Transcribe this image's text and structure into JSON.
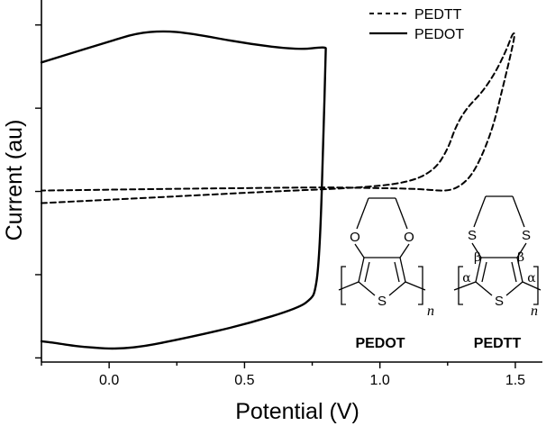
{
  "chart_data": {
    "type": "line",
    "title": "",
    "xlabel": "Potential (V)",
    "ylabel": "Current (au)",
    "xlim": [
      -0.25,
      1.6
    ],
    "ylim": [
      -2.05,
      2.3
    ],
    "x_ticks": [
      0.0,
      0.5,
      1.0,
      1.5
    ],
    "x_tick_labels": [
      "0.0",
      "0.5",
      "1.0",
      "1.5"
    ],
    "y_ticks": [
      -2,
      -1,
      0,
      1,
      2
    ],
    "y_tick_labels": [
      "",
      "",
      "",
      "",
      ""
    ],
    "grid": false,
    "legend_position": "top-right",
    "series": [
      {
        "name": "PEDTT",
        "style": "dashed",
        "color": "#000000",
        "x": [
          -0.25,
          0.0,
          0.3,
          0.6,
          0.9,
          1.1,
          1.2,
          1.25,
          1.28,
          1.32,
          1.38,
          1.43,
          1.47,
          1.49,
          1.5,
          1.48,
          1.45,
          1.42,
          1.38,
          1.34,
          1.3,
          1.25,
          1.15,
          1.0,
          0.8,
          0.5,
          0.2,
          -0.25
        ],
        "y": [
          -0.14,
          -0.1,
          -0.05,
          0.0,
          0.04,
          0.1,
          0.25,
          0.5,
          0.78,
          1.0,
          1.2,
          1.45,
          1.72,
          1.9,
          1.9,
          1.6,
          1.2,
          0.8,
          0.45,
          0.2,
          0.07,
          0.0,
          0.03,
          0.04,
          0.05,
          0.04,
          0.03,
          0.01
        ]
      },
      {
        "name": "PEDOT",
        "style": "solid",
        "color": "#000000",
        "x": [
          -0.25,
          -0.2,
          0.0,
          0.1,
          0.2,
          0.3,
          0.5,
          0.7,
          0.8,
          0.8,
          0.79,
          0.78,
          0.77,
          0.76,
          0.75,
          0.7,
          0.5,
          0.3,
          0.07,
          -0.1,
          -0.2,
          -0.25
        ],
        "y": [
          1.55,
          1.6,
          1.8,
          1.9,
          1.93,
          1.9,
          1.78,
          1.7,
          1.74,
          1.7,
          0.5,
          -0.5,
          -1.0,
          -1.2,
          -1.28,
          -1.4,
          -1.6,
          -1.75,
          -1.9,
          -1.87,
          -1.82,
          -1.8
        ]
      }
    ]
  },
  "structures": [
    {
      "label": "PEDOT",
      "ring_atoms": [
        "O",
        "O"
      ],
      "thiophene_atom": "S",
      "subscript": "n"
    },
    {
      "label": "PEDTT",
      "ring_atoms": [
        "S",
        "S"
      ],
      "thiophene_atom": "S",
      "greek_labels": [
        "β",
        "β",
        "α",
        "α"
      ],
      "subscript": "n"
    }
  ]
}
